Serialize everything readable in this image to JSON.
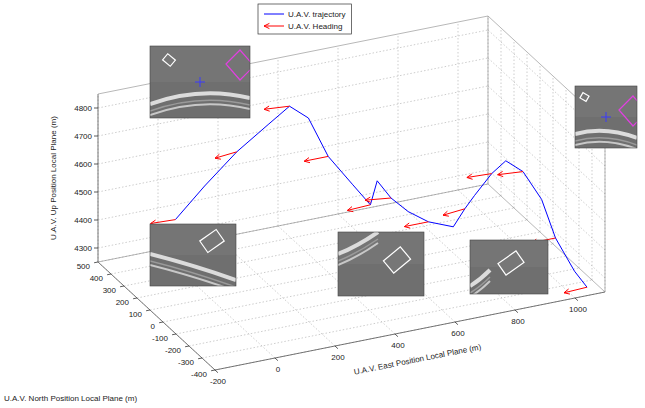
{
  "chart_data": {
    "type": "line3d",
    "xlabel": "U.A.V. East Position Local Plane (m)",
    "ylabel": "U.A.V. North Position Local Plane (m)",
    "zlabel": "U.A.V. Up Position Local Plane (m)",
    "xlim": [
      -200,
      1100
    ],
    "ylim": [
      -400,
      500
    ],
    "zlim": [
      4250,
      4850
    ],
    "xticks": [
      -200,
      0,
      200,
      400,
      600,
      800,
      1000
    ],
    "yticks": [
      -400,
      -300,
      -200,
      -100,
      0,
      100,
      200,
      300,
      400,
      500
    ],
    "zticks": [
      4300,
      4400,
      4500,
      4600,
      4700,
      4800
    ],
    "grid": true,
    "legend": "top",
    "series": [
      {
        "name": "U.A.V. trajectory",
        "type": "line",
        "color": "#0000ff",
        "line_style": "solid",
        "x": [
          -20,
          60,
          150,
          250,
          330,
          380,
          420,
          470,
          500,
          540,
          560,
          600,
          650,
          720,
          780,
          830,
          900,
          960,
          1000,
          1010,
          1000,
          1020,
          1040
        ],
        "y": [
          320,
          280,
          240,
          230,
          250,
          220,
          160,
          90,
          20,
          60,
          0,
          -40,
          -80,
          -110,
          -60,
          -20,
          10,
          40,
          0,
          -120,
          -250,
          -350,
          -400
        ],
        "z": [
          4440,
          4560,
          4680,
          4760,
          4800,
          4760,
          4640,
          4560,
          4510,
          4570,
          4530,
          4490,
          4460,
          4440,
          4470,
          4490,
          4540,
          4560,
          4530,
          4480,
          4400,
          4320,
          4280
        ]
      },
      {
        "name": "U.A.V. Heading",
        "type": "quiver",
        "color": "#ff0000",
        "marker": "arrow",
        "x": [
          -20,
          150,
          330,
          420,
          500,
          560,
          650,
          780,
          900,
          1000,
          1000,
          1040
        ],
        "y": [
          320,
          240,
          250,
          160,
          20,
          0,
          -80,
          -60,
          10,
          0,
          -250,
          -400
        ],
        "z": [
          4440,
          4680,
          4800,
          4640,
          4510,
          4530,
          4460,
          4470,
          4540,
          4530,
          4400,
          4280
        ],
        "heading": [
          275,
          260,
          280,
          270,
          265,
          285,
          270,
          260,
          275,
          280,
          270,
          265
        ]
      }
    ]
  }
}
